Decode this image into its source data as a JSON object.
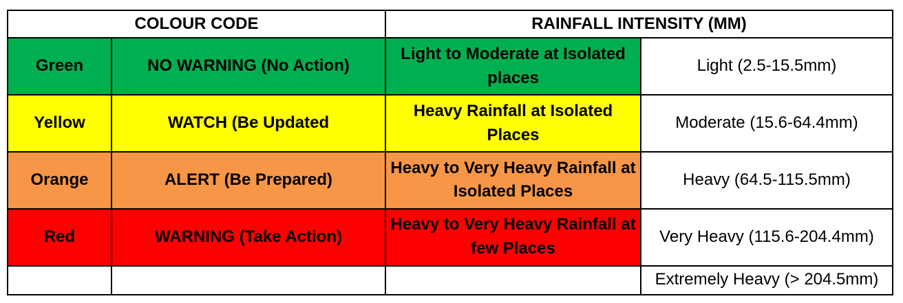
{
  "headers": {
    "colour_code": "COLOUR CODE",
    "rainfall_intensity": "RAINFALL INTENSITY (MM)"
  },
  "rows": [
    {
      "colour": "Green",
      "status": "NO WARNING (No Action)",
      "rainfall": "Light to Moderate at Isolated places",
      "intensity": "Light (2.5-15.5mm)",
      "bg": "#00b050"
    },
    {
      "colour": "Yellow",
      "status": "WATCH (Be Updated",
      "rainfall": "Heavy Rainfall at Isolated Places",
      "intensity": "Moderate (15.6-64.4mm)",
      "bg": "#ffff00"
    },
    {
      "colour": "Orange",
      "status": "ALERT (Be Prepared)",
      "rainfall": "Heavy to Very Heavy Rainfall at Isolated Places",
      "intensity": "Heavy (64.5-115.5mm)",
      "bg": "#f79646"
    },
    {
      "colour": "Red",
      "status": "WARNING (Take Action)",
      "rainfall": "Heavy to Very Heavy Rainfall at few Places",
      "intensity": "Very Heavy (115.6-204.4mm)",
      "bg": "#ff0000"
    }
  ],
  "last_row": {
    "intensity": "Extremely Heavy (> 204.5mm)"
  }
}
